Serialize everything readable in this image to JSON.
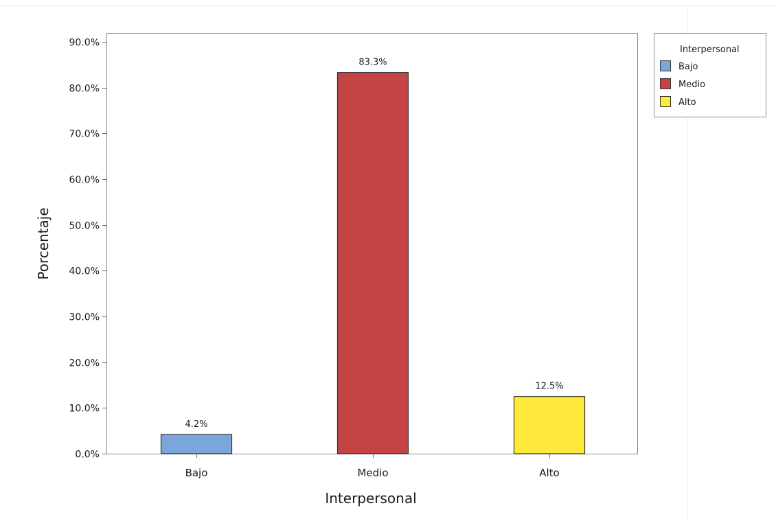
{
  "chart_data": {
    "type": "bar",
    "categories": [
      "Bajo",
      "Medio",
      "Alto"
    ],
    "values": [
      4.2,
      83.3,
      12.5
    ],
    "data_labels": [
      "4.2%",
      "83.3%",
      "12.5%"
    ],
    "colors": [
      "#7aa6d9",
      "#c44446",
      "#ffea3c"
    ],
    "ylim": [
      0,
      90
    ],
    "yticks": [
      0,
      10,
      20,
      30,
      40,
      50,
      60,
      70,
      80,
      90
    ],
    "ytick_labels": [
      "0.0%",
      "10.0%",
      "20.0%",
      "30.0%",
      "40.0%",
      "50.0%",
      "60.0%",
      "70.0%",
      "80.0%",
      "90.0%"
    ],
    "xlabel": "Interpersonal",
    "ylabel": "Porcentaje",
    "grid": false,
    "legend": {
      "title": "Interpersonal",
      "placement": "top-right-outside",
      "entries": [
        "Bajo",
        "Medio",
        "Alto"
      ]
    }
  }
}
